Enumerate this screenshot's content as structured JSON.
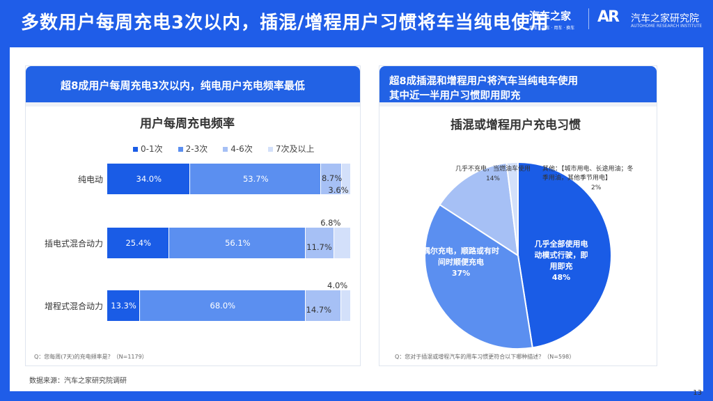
{
  "header": {
    "title": "多数用户每周充电3次以内，插混/增程用户习惯将车当纯电使用",
    "logo1_main": "汽车之家",
    "logo1_sub": "看车 · 买车 · 用车 · 换车",
    "logo2_mark": "AR",
    "logo2_name": "汽车之家研究院",
    "logo2_sub": "AUTOHOME RESEARCH INSTITUTE"
  },
  "left_panel": {
    "heading": "超8成用户每周充电3次以内，纯电用户充电频率最低",
    "note": "Q：您每周(7天)的充电频率是？（N=1179）"
  },
  "right_panel": {
    "heading_line1": "超8成插混和增程用户将汽车当纯电车使用",
    "heading_line2": "其中近一半用户习惯即用即充",
    "note": "Q：您对于插混或增程汽车的用车习惯更符合以下哪种描述？（N=598）"
  },
  "chart_data": [
    {
      "type": "bar",
      "orientation": "horizontal-stacked",
      "title": "用户每周充电频率",
      "categories": [
        "纯电动",
        "插电式混合动力",
        "增程式混合动力"
      ],
      "series": [
        {
          "name": "0-1次",
          "values": [
            34.0,
            25.4,
            13.3
          ],
          "labels": [
            "34.0%",
            "25.4%",
            "13.3%"
          ],
          "color": "#1a5ce6"
        },
        {
          "name": "2-3次",
          "values": [
            53.7,
            56.1,
            68.0
          ],
          "labels": [
            "53.7%",
            "56.1%",
            "68.0%"
          ],
          "color": "#5b8ff0"
        },
        {
          "name": "4-6次",
          "values": [
            8.7,
            11.7,
            14.7
          ],
          "labels": [
            "8.7%",
            "11.7%",
            "14.7%"
          ],
          "color": "#a6c0f5"
        },
        {
          "name": "7次及以上",
          "values": [
            3.6,
            6.8,
            4.0
          ],
          "labels": [
            "3.6%",
            "6.8%",
            "4.0%"
          ],
          "color": "#d3e0fa"
        }
      ],
      "legend": "top",
      "xlim": [
        0,
        100
      ]
    },
    {
      "type": "pie",
      "title": "插混或增程用户充电习惯",
      "slices": [
        {
          "name": "几乎全部使用电动模式行驶，即用即充",
          "value": 48,
          "label": "48%",
          "color": "#1a5ce6"
        },
        {
          "name": "偶尔充电，顺路或有时间时顺便充电",
          "value": 37,
          "label": "37%",
          "color": "#5b8ff0"
        },
        {
          "name": "几乎不充电，当燃油车使用",
          "value": 14,
          "label": "14%",
          "color": "#a6c0f5"
        },
        {
          "name": "其他：【城市用电、长途用油；冬季用油，其他季节用电】",
          "value": 2,
          "label": "2%",
          "color": "#d3e0fa"
        }
      ]
    }
  ],
  "pie_text": {
    "big_line1": "几乎全部使用电",
    "big_line2": "动模式行驶，即",
    "big_line3": "用即充",
    "mid_line1": "偶尔充电，顺路或有时",
    "mid_line2": "间时顺便充电",
    "small_line1": "几乎不充电，当燃油车使用",
    "other_line1": "其他：【城市用电、长途用油；冬",
    "other_line2": "季用油，其他季节用电】"
  },
  "footer": {
    "source": "数据来源：汽车之家研究院调研",
    "page": "13"
  }
}
